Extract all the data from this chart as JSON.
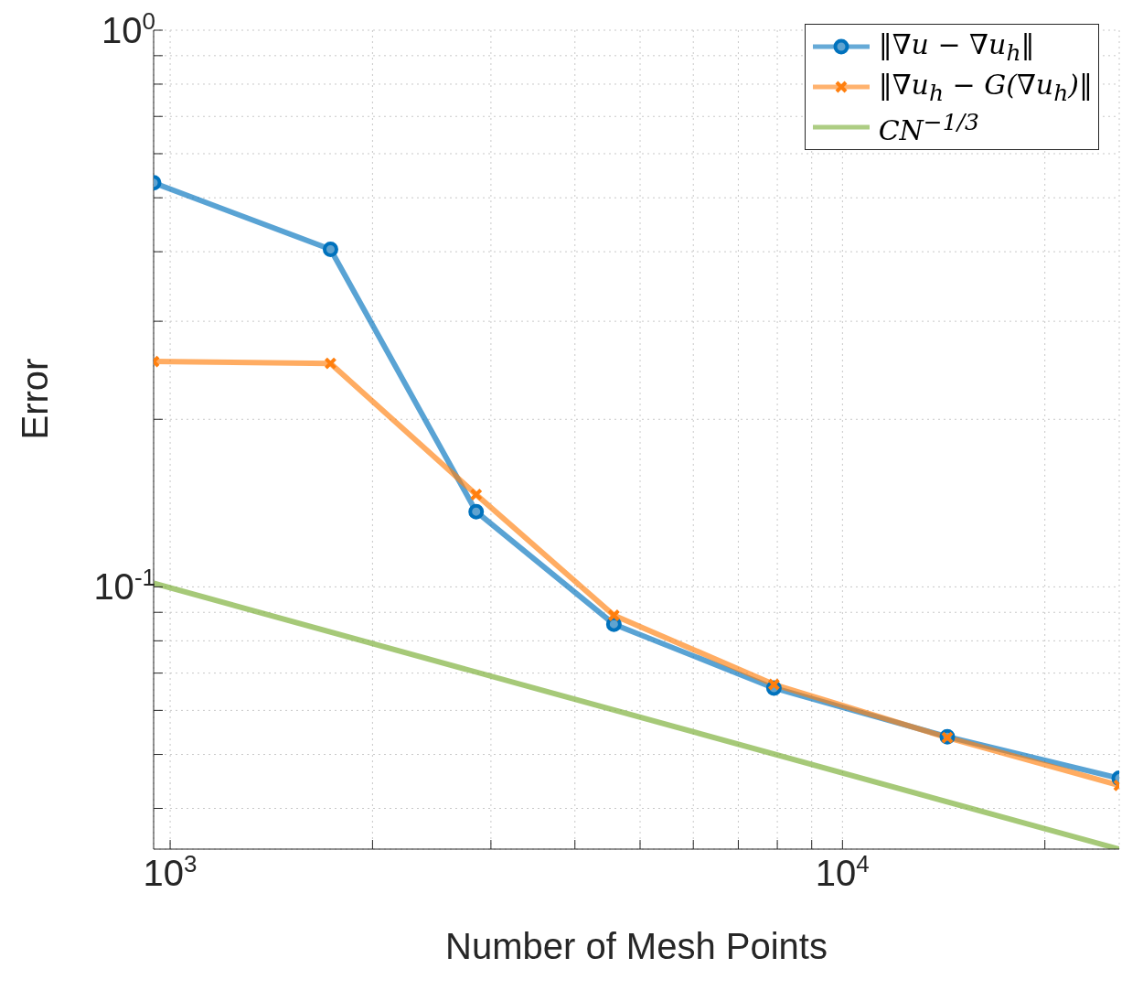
{
  "chart_data": {
    "type": "line",
    "xlabel": "Number of Mesh Points",
    "ylabel": "Error",
    "log": "xy",
    "grid": true,
    "legend": "top right",
    "line_style": "solid",
    "xlim": [
      945,
      25800
    ],
    "ylim": [
      0.0338,
      1
    ],
    "xticks": [
      {
        "value": 1000,
        "label": "10$^{3}$"
      },
      {
        "value": 2000,
        "label": null
      },
      {
        "value": 3000,
        "label": null
      },
      {
        "value": 4000,
        "label": null
      },
      {
        "value": 5000,
        "label": null
      },
      {
        "value": 6000,
        "label": null
      },
      {
        "value": 7000,
        "label": null
      },
      {
        "value": 8000,
        "label": null
      },
      {
        "value": 9000,
        "label": null
      },
      {
        "value": 10000,
        "label": "10$^{4}$"
      },
      {
        "value": 20000,
        "label": null
      }
    ],
    "yticks": [
      {
        "value": 0.04,
        "label": null
      },
      {
        "value": 0.05,
        "label": null
      },
      {
        "value": 0.06,
        "label": null
      },
      {
        "value": 0.07,
        "label": null
      },
      {
        "value": 0.08,
        "label": null
      },
      {
        "value": 0.09,
        "label": null
      },
      {
        "value": 0.1,
        "label": "10$^{-1}$"
      },
      {
        "value": 0.2,
        "label": null
      },
      {
        "value": 0.3,
        "label": null
      },
      {
        "value": 0.4,
        "label": null
      },
      {
        "value": 0.5,
        "label": null
      },
      {
        "value": 0.6,
        "label": null
      },
      {
        "value": 0.7,
        "label": null
      },
      {
        "value": 0.8,
        "label": null
      },
      {
        "value": 0.9,
        "label": null
      },
      {
        "value": 1,
        "label": "10$^{0}$"
      }
    ],
    "series": [
      {
        "name": "‖∇u − ∇u$_{h}$‖",
        "color": "#0072bd",
        "marker": "circle",
        "x": [
          945,
          1732,
          2852,
          4571,
          7907,
          14320,
          25800
        ],
        "values": [
          0.532,
          0.404,
          0.1365,
          0.0857,
          0.0658,
          0.0538,
          0.0453
        ]
      },
      {
        "name": "‖∇u$_{h}$ − G(∇u$_{h}$)‖",
        "color": "#ff7f0e",
        "marker": "cross",
        "x": [
          945,
          1732,
          2852,
          4571,
          7907,
          14320,
          25800
        ],
        "values": [
          0.254,
          0.252,
          0.1465,
          0.0889,
          0.0668,
          0.0536,
          0.044
        ]
      },
      {
        "name": "CN$^{−1/3}$",
        "color": "#77ac30",
        "marker": "none",
        "x": [
          945,
          25800
        ],
        "values": [
          0.1015,
          0.0338
        ]
      }
    ]
  }
}
